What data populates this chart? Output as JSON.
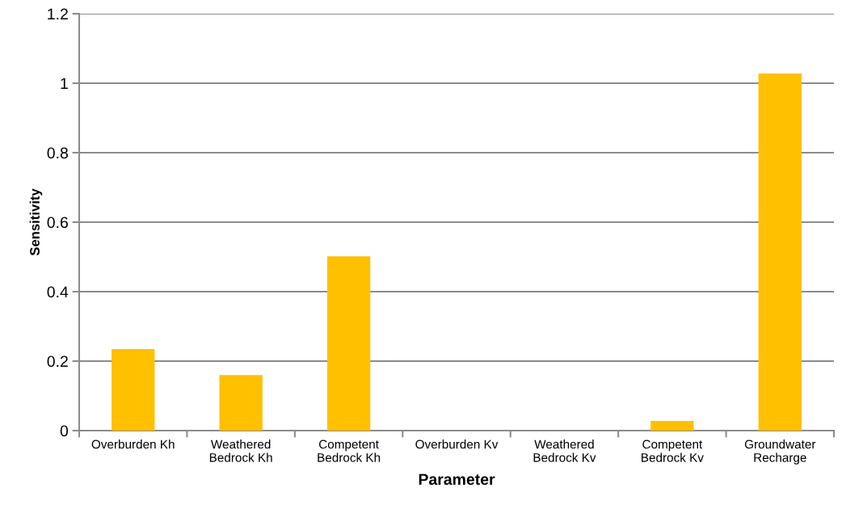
{
  "chart_data": {
    "type": "bar",
    "xlabel": "Parameter",
    "ylabel": "Sensitivity",
    "categories": [
      "Overburden Kh",
      "Weathered\nBedrock Kh",
      "Competent\nBedrock Kh",
      "Overburden Kv",
      "Weathered\nBedrock Kv",
      "Competent\nBedrock Kv",
      "Groundwater\nRecharge"
    ],
    "values": [
      0.235,
      0.16,
      0.502,
      0,
      0,
      0.028,
      1.028
    ],
    "color": "#ffc000",
    "ylim": [
      0,
      1.2
    ],
    "yticks": [
      0,
      0.2,
      0.4,
      0.6,
      0.8,
      1,
      1.2
    ],
    "grid": "y",
    "legend": false
  }
}
